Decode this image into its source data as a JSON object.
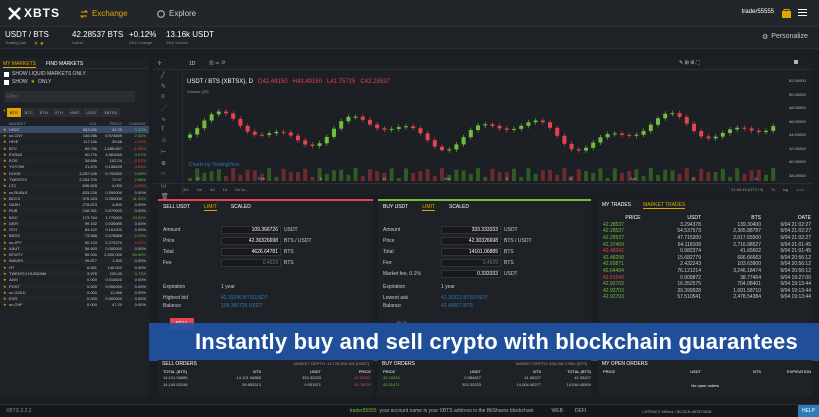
{
  "nav": {
    "brand": "XBTS",
    "exchange": "Exchange",
    "explore": "Explore",
    "user": "trader55555",
    "personalize": "Personalize"
  },
  "ticker": {
    "pair": "USDT / BTS",
    "pair_sub": "Trading pair",
    "price": "42.28537 BTS",
    "price_sub": "Latest",
    "change": "+0.12%",
    "change_sub": "24hr Change",
    "volume": "13.16k USDT",
    "volume_sub": "24hr Volume"
  },
  "markets": {
    "tab_my": "MY MARKETS",
    "tab_find": "FIND MARKETS",
    "show_liquid": "SHOW LIQUID MARKETS ONLY",
    "show_only": "SHOW",
    "only": "ONLY",
    "filter_placeholder": "Filter",
    "chips": [
      "BTS",
      "BTC",
      "ETH",
      "XTH",
      "HIVE",
      "USDT",
      "XBTSX"
    ],
    "headers": [
      "MARKET",
      "VOL",
      "PRICE",
      "CHANGE"
    ],
    "rows": [
      [
        "USDT",
        "563.00k",
        "42.29",
        "0.12%"
      ],
      [
        "sv-CNY",
        "146.06k",
        "6.974659",
        "2.32%"
      ],
      [
        "HIVE",
        "117.10k",
        "39.68",
        "-2.20%"
      ],
      [
        "BTC",
        "89.70k",
        "1,585,667",
        "-1.55%"
      ],
      [
        "EVRAZ",
        "60.77k",
        "4.581640",
        "0.07%"
      ],
      [
        "EOS",
        "38.69k",
        "102.24",
        "-2.57%"
      ],
      [
        "YOYOW",
        "21.87k",
        "0.158435",
        "-4.85%"
      ],
      [
        "DOGE",
        "3,287.246",
        "5.792653",
        "0.99%"
      ],
      [
        "TWENTIX",
        "2,263.709",
        "72.97",
        "2.86%"
      ],
      [
        "LTC",
        "836.628",
        "4,000",
        "-0.05%"
      ],
      [
        "sv-RUBLE",
        "833.226",
        "0.500000",
        "0.00%"
      ],
      [
        "BCCX",
        "376.343",
        "0.250000",
        "11.02%"
      ],
      [
        "DASH",
        "278.873",
        "4,800",
        "0.00%"
      ],
      [
        "RUB",
        "248.331",
        "0.570000",
        "0.00%"
      ],
      [
        "BGC",
        "173.764",
        "1.770000",
        "10.62%"
      ],
      [
        "DEFI",
        "99.192",
        "0.035989",
        "0.00%"
      ],
      [
        "STH",
        "83.422",
        "0.161000",
        "0.00%"
      ],
      [
        "BEDS",
        "73.588",
        "0.078686",
        "0.29%"
      ],
      [
        "sv-JPY",
        "60.133",
        "0.270270",
        "-5.47%"
      ],
      [
        "XAUT",
        "56.593",
        "0.000000",
        "0.00%"
      ],
      [
        "BTWTY",
        "50.000",
        "2,500,000",
        "50.00%"
      ],
      [
        "WAVES",
        "49.877",
        "1,300",
        "0.00%"
      ],
      [
        "HT",
        "6.551",
        "140.000",
        "0.00%"
      ],
      [
        "TWENTIX.HUSDMM",
        "3.976",
        "100.30",
        "0.73%"
      ],
      [
        "AXM",
        "0.000",
        "0.015820",
        "0.00%"
      ],
      [
        "POST",
        "0.000",
        "0.000000",
        "0.00%"
      ],
      [
        "sv-GOLD",
        "0.000",
        "11,986",
        "0.00%"
      ],
      [
        "EXR",
        "0.000",
        "0.000000",
        "0.00%"
      ],
      [
        "sv-CHF",
        "0.000",
        "47.20",
        "0.00%"
      ]
    ]
  },
  "chart": {
    "symbol": "USDT / BTS (XBTSX), D",
    "open": "O42.49150",
    "high": "H43.49150",
    "low": "L41.75725",
    "close": "C42.28537",
    "volume": "Volume (20)",
    "interval": "1D",
    "prices": [
      "52.00000",
      "50.00000",
      "48.00000",
      "46.00000",
      "44.00000",
      "42.00000",
      "40.00000",
      "38.00000"
    ],
    "months": [
      "29",
      "Feb",
      "8",
      "14",
      "Mar",
      "8",
      "15",
      "Apr",
      "6",
      "11"
    ],
    "ranges": [
      "3m",
      "1m",
      "5d",
      "1d",
      "Go to..."
    ],
    "time": "21:05:49 (UTC+3)",
    "scale": "%",
    "log": "log",
    "auto": "auto",
    "watermark": "Charts by TradingView"
  },
  "sell": {
    "title": "SELL USDT",
    "tab_limit": "LIMIT",
    "tab_scaled": "SCALED",
    "amount_label": "Amount",
    "amount": "109.366726",
    "amount_unit": "USDT",
    "price_label": "Price",
    "price": "42.30326698",
    "price_unit": "BTS / USDT",
    "total_label": "Total",
    "total": "4626.64781",
    "total_unit": "BTS",
    "fee_label": "Fee",
    "fee": "0.4629",
    "fee_unit": "BTS",
    "exp_label": "Expiration",
    "exp": "1 year",
    "bid_label": "Highest bid",
    "bid": "42.19246 BTS/USDT",
    "bal_label": "Balance",
    "bal": "109.366726 USDT",
    "button": "SELL"
  },
  "buy": {
    "title": "BUY USDT",
    "tab_limit": "LIMIT",
    "tab_scaled": "SCALED",
    "amount_label": "Amount",
    "amount": "333.333333",
    "amount_unit": "USDT",
    "price_label": "Price",
    "price": "42.30326698",
    "price_unit": "BTS / USDT",
    "total_label": "Total",
    "total": "14101.06885",
    "total_unit": "BTS",
    "fee_label": "Fee",
    "fee": "0.4629",
    "fee_unit": "BTS",
    "mfee_label": "Market fee, 0.1%",
    "mfee": "0.333333",
    "mfee_unit": "USDT",
    "exp_label": "Expiration",
    "exp": "1 year",
    "ask_label": "Lowest ask",
    "ask": "42.30321 BTS/USDT",
    "bal_label": "Balance",
    "bal": "42.49067 BTS",
    "button": "BUY"
  },
  "trades": {
    "tab_my": "MY TRADES",
    "tab_market": "MARKET TRADES",
    "headers": [
      "PRICE",
      "USDT",
      "BTS",
      "DATE"
    ],
    "rows": [
      [
        "42.28537",
        "3.294378",
        "139.30400",
        "9/04 21:02:27"
      ],
      [
        "42.28537",
        "54.537573",
        "2,305.88787",
        "9/04 21:02:27"
      ],
      [
        "42.28537",
        "47.715200",
        "2,017.65500",
        "9/04 21:02:27"
      ],
      [
        "42.37469",
        "64.118108",
        "2,716.98527",
        "9/04 21:01:45"
      ],
      [
        "42.48342",
        "0.982374",
        "41.65602",
        "9/04 21:01:45"
      ],
      [
        "42.48258",
        "15.682779",
        "666.66663",
        "9/04 20:56:12"
      ],
      [
        "42.60871",
        "2.432243",
        "103.63900",
        "9/04 20:56:12"
      ],
      [
        "42.64494",
        "76.121214",
        "3,246.18474",
        "9/04 20:56:12"
      ],
      [
        "42.61548",
        "0.909872",
        "38.77464",
        "9/04 19:27:00"
      ],
      [
        "42.92703",
        "16.352575",
        "704.08401",
        "9/04 19:13:44"
      ],
      [
        "42.93703",
        "39.399928",
        "1,691.58710",
        "9/04 19:13:44"
      ],
      [
        "42.92703",
        "57.510541",
        "2,478.54384",
        "9/04 19:13:44"
      ]
    ]
  },
  "banner": "Instantly buy and sell crypto with blockchain guarantees",
  "sell_orders": {
    "title": "SELL ORDERS",
    "depth": "MARKET DEPTH: 13,726,534,165 [USDT]",
    "headers": [
      "TOTAL (BTS)",
      "BTS",
      "USDT",
      "PRICE"
    ],
    "rows": [
      [
        "14,101.06885",
        "14,101.06885",
        "333.33333",
        "42.30321"
      ],
      [
        "14,140.92158",
        "39.853313",
        "0.931571",
        "42.78039"
      ]
    ]
  },
  "buy_orders": {
    "title": "BUY ORDERS",
    "depth": "MARKET DEPTH: 638,256,17581 [BTS]",
    "headers": [
      "PRICE",
      "USDT",
      "BTS",
      "TOTAL (BTS)"
    ],
    "rows": [
      [
        "42.19246",
        "0.984827",
        "41.55227",
        "41.55227"
      ],
      [
        "42.01471",
        "333.33333",
        "14,004.90277",
        "14,046.45504"
      ]
    ]
  },
  "open_orders": {
    "title": "MY OPEN ORDERS",
    "headers": [
      "PRICE",
      "USDT",
      "BTS",
      "EXPIRATION"
    ],
    "empty": "No open orders"
  },
  "status": {
    "version": "XBTS 2.2.2",
    "message_user": "trader55555",
    "message": "your account name is your XBTS address in the BitShares blockchain",
    "web": "WEB",
    "defi": "DEFI",
    "latency": "LATENCY 482ms / BLOCK #67874526",
    "help": "HELP"
  }
}
